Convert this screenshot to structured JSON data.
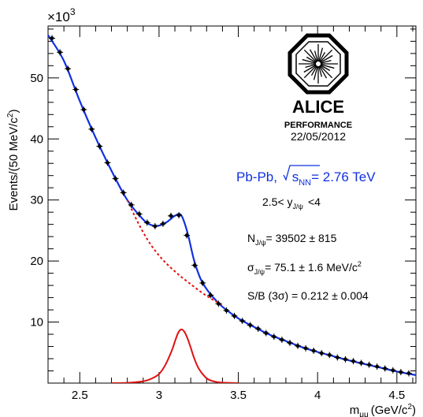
{
  "chart_data": {
    "type": "scatter",
    "xlabel": "m",
    "xlabel_sub": "μμ",
    "xlabel_unit": "(GeV/c",
    "xlabel_unit_sup": "2",
    "xlabel_unit_close": ")",
    "ylabel": "Events/(50 MeV/c",
    "ylabel_sup": "2",
    "ylabel_close": ")",
    "y_multiplier": "×10",
    "y_multiplier_exp": "3",
    "xlim": [
      2.3,
      4.62
    ],
    "ylim": [
      0,
      58.5
    ],
    "xticks": [
      2.5,
      3,
      3.5,
      4,
      4.5
    ],
    "xtick_labels": [
      "2.5",
      "3",
      "3.5",
      "4",
      "4.5"
    ],
    "yticks": [
      10,
      20,
      30,
      40,
      50
    ],
    "ytick_labels": [
      "10",
      "20",
      "30",
      "40",
      "50"
    ],
    "grid": false,
    "series": [
      {
        "kind": "data-points",
        "color": "#000000",
        "x": [
          2.325,
          2.375,
          2.425,
          2.475,
          2.525,
          2.575,
          2.625,
          2.675,
          2.725,
          2.775,
          2.825,
          2.875,
          2.925,
          2.975,
          3.025,
          3.075,
          3.125,
          3.175,
          3.225,
          3.275,
          3.325,
          3.375,
          3.425,
          3.475,
          3.525,
          3.575,
          3.625,
          3.675,
          3.725,
          3.775,
          3.825,
          3.875,
          3.925,
          3.975,
          4.025,
          4.075,
          4.125,
          4.175,
          4.225,
          4.275,
          4.325,
          4.375,
          4.425,
          4.475,
          4.525,
          4.575
        ],
        "y": [
          56.5,
          54.2,
          51.5,
          48.1,
          44.8,
          41.6,
          38.8,
          36.1,
          33.5,
          31.2,
          29.2,
          27.7,
          26.3,
          25.7,
          26.1,
          27.4,
          27.5,
          24.2,
          19.3,
          16.4,
          14.4,
          13.0,
          11.9,
          11.0,
          10.2,
          9.5,
          8.9,
          8.2,
          7.6,
          7.1,
          6.6,
          6.1,
          5.7,
          5.3,
          4.9,
          4.6,
          4.2,
          3.9,
          3.6,
          3.3,
          3.0,
          2.7,
          2.4,
          2.1,
          1.8,
          1.6
        ]
      },
      {
        "kind": "total-fit",
        "color": "#1030e0",
        "x": [
          2.3,
          2.4,
          2.5,
          2.6,
          2.7,
          2.8,
          2.9,
          2.95,
          3.0,
          3.05,
          3.1,
          3.14,
          3.18,
          3.22,
          3.26,
          3.3,
          3.35,
          3.4,
          3.5,
          3.6,
          3.7,
          3.8,
          3.9,
          4.0,
          4.1,
          4.2,
          4.3,
          4.4,
          4.5,
          4.62
        ],
        "y": [
          57.0,
          52.8,
          46.2,
          40.2,
          34.8,
          30.0,
          26.8,
          25.9,
          25.8,
          26.4,
          27.4,
          27.5,
          24.6,
          20.2,
          17.2,
          15.4,
          13.8,
          12.5,
          10.6,
          9.2,
          7.9,
          6.9,
          5.9,
          5.1,
          4.4,
          3.7,
          3.1,
          2.5,
          1.9,
          1.3
        ]
      },
      {
        "kind": "background-fit",
        "color": "#e01010",
        "dashed": true,
        "x": [
          2.8,
          2.85,
          2.9,
          2.95,
          3.0,
          3.05,
          3.1,
          3.15,
          3.2,
          3.25,
          3.3,
          3.35,
          3.4
        ],
        "y": [
          30.0,
          27.2,
          24.7,
          22.6,
          20.9,
          19.5,
          18.3,
          17.2,
          16.2,
          15.2,
          14.3,
          13.5,
          12.8
        ]
      },
      {
        "kind": "signal-fit",
        "color": "#e01010",
        "x": [
          2.7,
          2.8,
          2.9,
          2.95,
          3.0,
          3.04,
          3.08,
          3.1,
          3.12,
          3.14,
          3.16,
          3.18,
          3.2,
          3.22,
          3.25,
          3.3,
          3.35,
          3.4,
          3.5
        ],
        "y": [
          0.0,
          0.05,
          0.3,
          0.7,
          1.5,
          3.0,
          5.3,
          6.8,
          8.2,
          8.8,
          8.4,
          7.3,
          5.8,
          4.2,
          2.4,
          0.8,
          0.25,
          0.08,
          0.0
        ]
      }
    ],
    "annotations": {
      "system_pre": "Pb-Pb, ",
      "system_sqrt": "s",
      "system_sub": "NN",
      "system_post": "= 2.76 TeV",
      "rapidity_pre": "2.5< y",
      "rapidity_sub": "J/ψ",
      "rapidity_post": "<4",
      "n_pre": "N",
      "n_sub": "J/ψ",
      "n_post": "= 39502 ± 815",
      "sigma_pre": "σ",
      "sigma_sub": "J/ψ",
      "sigma_post": "= 75.1 ± 1.6 MeV/c",
      "sigma_sup": "2",
      "sb": "S/B (3σ) = 0.212 ± 0.004"
    },
    "logo": {
      "name": "ALICE",
      "subtitle": "PERFORMANCE",
      "date": "22/05/2012"
    }
  }
}
